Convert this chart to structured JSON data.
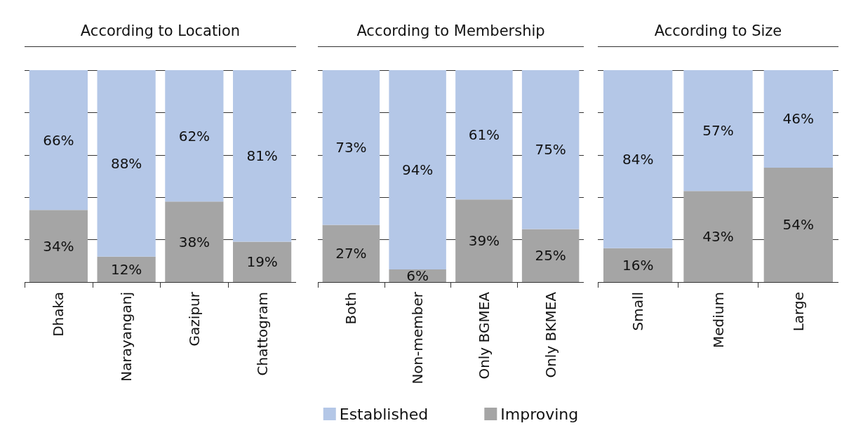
{
  "chart_data": [
    {
      "type": "bar",
      "title": "According to Location",
      "categories": [
        "Dhaka",
        "Narayanganj",
        "Gazipur",
        "Chattogram"
      ],
      "stacked": true,
      "ylim": [
        0,
        100
      ],
      "yticks": [
        {
          "value": 0,
          "label": null
        },
        {
          "value": 20,
          "label": null
        },
        {
          "value": 40,
          "label": null
        },
        {
          "value": 60,
          "label": null
        },
        {
          "value": 80,
          "label": null
        },
        {
          "value": 100,
          "label": null
        }
      ],
      "grid": "y",
      "tick_labels": "x",
      "legend": false,
      "series": [
        {
          "color": "#a5a5a5",
          "values": [
            34,
            12,
            38,
            19
          ],
          "value_labels": [
            "34%",
            "12%",
            "38%",
            "19%"
          ]
        },
        {
          "color": "#b4c7e7",
          "values": [
            66,
            88,
            62,
            81
          ],
          "value_labels": [
            "66%",
            "88%",
            "62%",
            "81%"
          ]
        }
      ]
    },
    {
      "type": "bar",
      "title": "According to Membership",
      "categories": [
        "Both",
        "Non-member",
        "Only BGMEA",
        "Only BKMEA"
      ],
      "stacked": true,
      "ylim": [
        0,
        100
      ],
      "yticks": [
        {
          "value": 0,
          "label": null
        },
        {
          "value": 20,
          "label": null
        },
        {
          "value": 40,
          "label": null
        },
        {
          "value": 60,
          "label": null
        },
        {
          "value": 80,
          "label": null
        },
        {
          "value": 100,
          "label": null
        }
      ],
      "grid": "y",
      "tick_labels": "x",
      "legend": "bottom",
      "series": [
        {
          "name": "Improving",
          "color": "#a5a5a5",
          "values": [
            27,
            6,
            39,
            25
          ],
          "value_labels": [
            "27%",
            "6%",
            "39%",
            "25%"
          ]
        },
        {
          "name": "Established",
          "color": "#b4c7e7",
          "values": [
            73,
            94,
            61,
            75
          ],
          "value_labels": [
            "73%",
            "94%",
            "61%",
            "75%"
          ]
        }
      ]
    },
    {
      "type": "bar",
      "title": "According to Size",
      "categories": [
        "Small",
        "Medium",
        "Large"
      ],
      "stacked": true,
      "ylim": [
        0,
        100
      ],
      "yticks": [
        {
          "value": 0,
          "label": null
        },
        {
          "value": 20,
          "label": null
        },
        {
          "value": 40,
          "label": null
        },
        {
          "value": 60,
          "label": null
        },
        {
          "value": 80,
          "label": null
        },
        {
          "value": 100,
          "label": null
        }
      ],
      "grid": "y",
      "tick_labels": "x",
      "legend": false,
      "series": [
        {
          "color": "#a5a5a5",
          "values": [
            16,
            43,
            54
          ],
          "value_labels": [
            "16%",
            "43%",
            "54%"
          ]
        },
        {
          "color": "#b4c7e7",
          "values": [
            84,
            57,
            46
          ],
          "value_labels": [
            "84%",
            "57%",
            "46%"
          ]
        }
      ]
    }
  ]
}
